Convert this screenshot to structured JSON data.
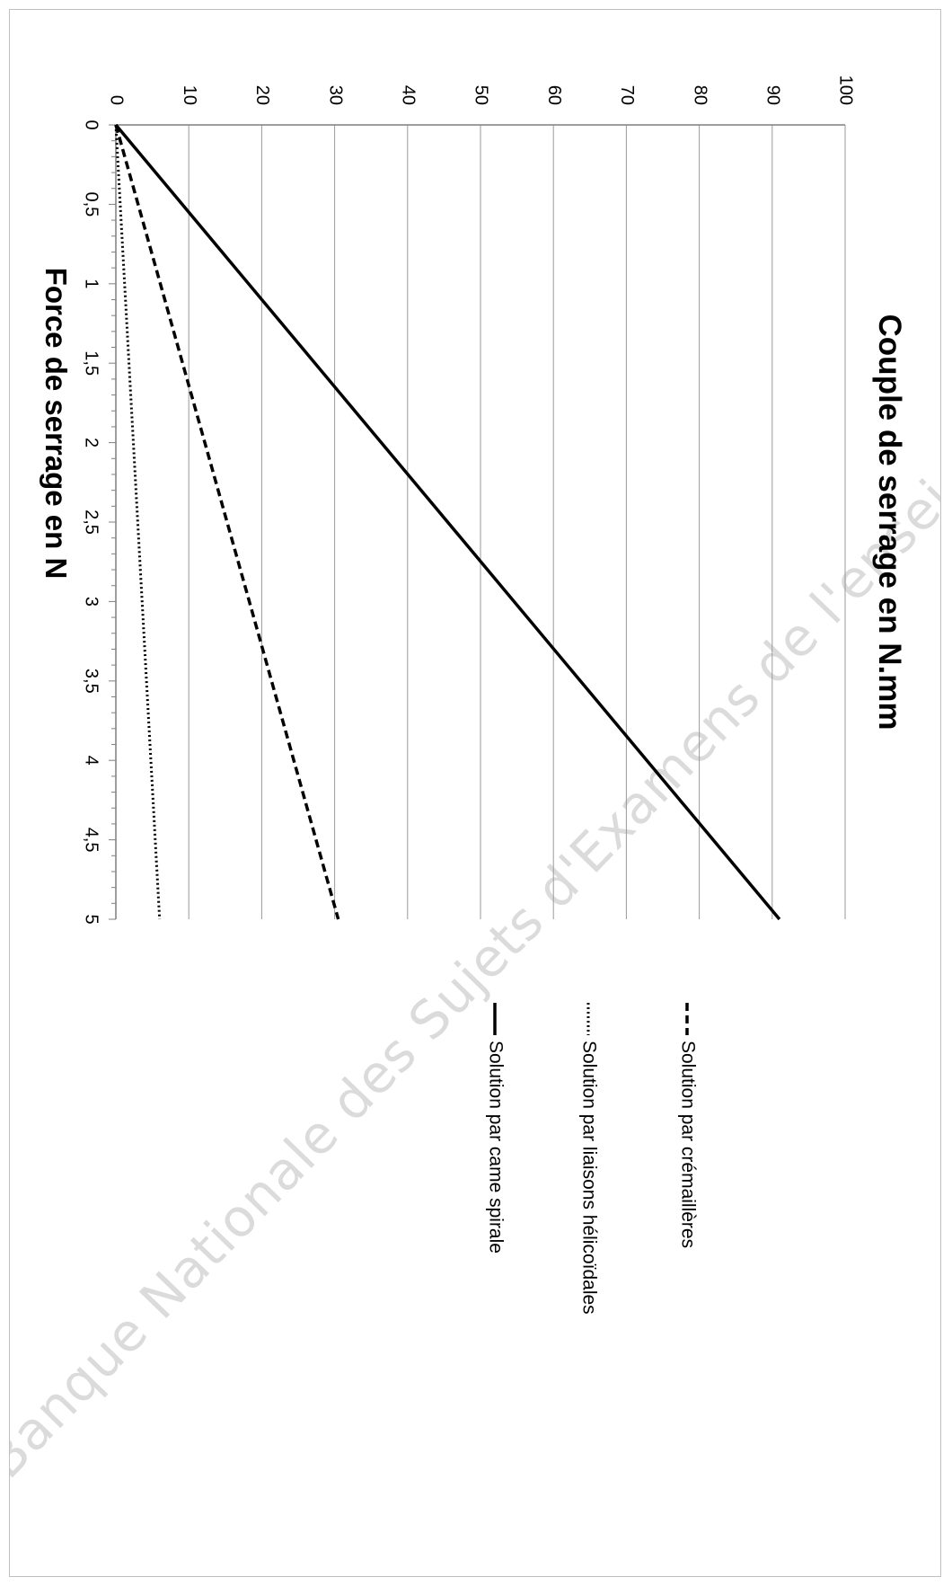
{
  "watermark": "Banque Nationale des Sujets d'Examens de l'enseignement professionnel",
  "chart_data": {
    "type": "line",
    "title": "",
    "xlabel": "Force de serrage en N",
    "ylabel": "Couple de serrage en N.mm",
    "xlim": [
      0,
      5
    ],
    "ylim": [
      0,
      100
    ],
    "x_ticks": [
      "0",
      "0,5",
      "1",
      "1,5",
      "2",
      "2,5",
      "3",
      "3,5",
      "4",
      "4,5",
      "5"
    ],
    "y_ticks": [
      "0",
      "10",
      "20",
      "30",
      "40",
      "50",
      "60",
      "70",
      "80",
      "90",
      "100"
    ],
    "grid": "horizontal",
    "orientation": "rotated 90° clockwise",
    "legend_position": "right",
    "series": [
      {
        "name": "Solution par came spirale",
        "style": "solid",
        "color": "#000000",
        "x": [
          0,
          5
        ],
        "y": [
          0,
          91
        ]
      },
      {
        "name": "Solution par liaisons hélicoïdales",
        "style": "dotted",
        "color": "#000000",
        "x": [
          0,
          5
        ],
        "y": [
          0,
          6
        ]
      },
      {
        "name": "Solution par crémaillères",
        "style": "dashed",
        "color": "#000000",
        "x": [
          0,
          5
        ],
        "y": [
          0,
          30.5
        ]
      }
    ]
  }
}
